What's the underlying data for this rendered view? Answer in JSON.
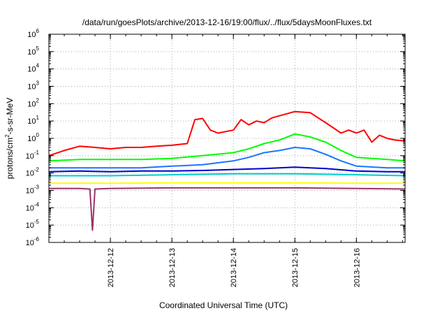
{
  "chart_data": {
    "type": "line",
    "title": "/data/run/goesPlots/archive/2013-12-16/19:00/flux/../flux/5daysMoonFluxes.txt",
    "xlabel": "Coordinated Universal Time (UTC)",
    "ylabel": {
      "prefix": "protons/cm",
      "superscript": "2",
      "suffix": "-s-sr-MeV"
    },
    "yscale": "log",
    "ylim_exponents": [
      -6,
      6
    ],
    "y_tick_base": "10",
    "y_tick_exponents": [
      "-6",
      "-5",
      "-4",
      "-3",
      "-2",
      "-1",
      "0",
      "1",
      "2",
      "3",
      "4",
      "5",
      "6"
    ],
    "xlim": [
      "2013-12-11 00:00",
      "2013-12-16 19:00"
    ],
    "x_ticks": [
      "2013-12-12",
      "2013-12-13",
      "2013-12-14",
      "2013-12-15",
      "2013-12-16"
    ],
    "grid": true,
    "series": [
      {
        "color": "#ff0000",
        "x": [
          "2013-12-11 00:00",
          "2013-12-11 06:00",
          "2013-12-11 12:00",
          "2013-12-11 18:00",
          "2013-12-12 00:00",
          "2013-12-12 06:00",
          "2013-12-12 12:00",
          "2013-12-12 18:00",
          "2013-12-13 00:00",
          "2013-12-13 06:00",
          "2013-12-13 09:00",
          "2013-12-13 12:00",
          "2013-12-13 15:00",
          "2013-12-13 18:00",
          "2013-12-14 00:00",
          "2013-12-14 03:00",
          "2013-12-14 06:00",
          "2013-12-14 09:00",
          "2013-12-14 12:00",
          "2013-12-14 15:00",
          "2013-12-14 18:00",
          "2013-12-15 00:00",
          "2013-12-15 06:00",
          "2013-12-15 12:00",
          "2013-12-15 15:00",
          "2013-12-15 18:00",
          "2013-12-15 21:00",
          "2013-12-16 00:00",
          "2013-12-16 03:00",
          "2013-12-16 06:00",
          "2013-12-16 09:00",
          "2013-12-16 12:00",
          "2013-12-16 15:00",
          "2013-12-16 19:00"
        ],
        "y": [
          0.1,
          0.2,
          0.35,
          0.3,
          0.25,
          0.3,
          0.3,
          0.35,
          0.4,
          0.5,
          12,
          14,
          3,
          2,
          3,
          12,
          6,
          10,
          8,
          15,
          20,
          35,
          30,
          8,
          4,
          2,
          3,
          2,
          3,
          0.6,
          1.5,
          1,
          0.8,
          0.7
        ]
      },
      {
        "color": "#00ff00",
        "x": [
          "2013-12-11 00:00",
          "2013-12-11 12:00",
          "2013-12-12 00:00",
          "2013-12-12 12:00",
          "2013-12-13 00:00",
          "2013-12-13 12:00",
          "2013-12-14 00:00",
          "2013-12-14 06:00",
          "2013-12-14 12:00",
          "2013-12-14 18:00",
          "2013-12-15 00:00",
          "2013-12-15 06:00",
          "2013-12-15 12:00",
          "2013-12-15 18:00",
          "2013-12-16 00:00",
          "2013-12-16 12:00",
          "2013-12-16 19:00"
        ],
        "y": [
          0.05,
          0.06,
          0.06,
          0.06,
          0.07,
          0.1,
          0.15,
          0.25,
          0.5,
          0.8,
          1.8,
          1.2,
          0.6,
          0.2,
          0.08,
          0.06,
          0.05
        ]
      },
      {
        "color": "#1a75ff",
        "x": [
          "2013-12-11 00:00",
          "2013-12-11 12:00",
          "2013-12-12 00:00",
          "2013-12-12 12:00",
          "2013-12-13 00:00",
          "2013-12-13 12:00",
          "2013-12-14 00:00",
          "2013-12-14 06:00",
          "2013-12-14 12:00",
          "2013-12-14 18:00",
          "2013-12-15 00:00",
          "2013-12-15 06:00",
          "2013-12-15 12:00",
          "2013-12-15 18:00",
          "2013-12-16 00:00",
          "2013-12-16 12:00",
          "2013-12-16 19:00"
        ],
        "y": [
          0.02,
          0.02,
          0.02,
          0.02,
          0.025,
          0.03,
          0.05,
          0.08,
          0.15,
          0.2,
          0.3,
          0.25,
          0.12,
          0.05,
          0.025,
          0.02,
          0.02
        ]
      },
      {
        "color": "#0000cc",
        "x": [
          "2013-12-11 00:00",
          "2013-12-11 12:00",
          "2013-12-12 00:00",
          "2013-12-12 12:00",
          "2013-12-13 00:00",
          "2013-12-13 12:00",
          "2013-12-14 00:00",
          "2013-12-14 12:00",
          "2013-12-15 00:00",
          "2013-12-15 12:00",
          "2013-12-16 00:00",
          "2013-12-16 12:00",
          "2013-12-16 19:00"
        ],
        "y": [
          0.012,
          0.013,
          0.012,
          0.013,
          0.013,
          0.014,
          0.016,
          0.018,
          0.022,
          0.018,
          0.013,
          0.012,
          0.012
        ]
      },
      {
        "color": "#00cccc",
        "x": [
          "2013-12-11 00:00",
          "2013-12-12 00:00",
          "2013-12-13 00:00",
          "2013-12-14 00:00",
          "2013-12-15 00:00",
          "2013-12-16 00:00",
          "2013-12-16 19:00"
        ],
        "y": [
          0.007,
          0.007,
          0.008,
          0.009,
          0.009,
          0.008,
          0.007
        ]
      },
      {
        "color": "#ffff00",
        "x": [
          "2013-12-11 00:00",
          "2013-12-12 00:00",
          "2013-12-13 00:00",
          "2013-12-14 00:00",
          "2013-12-15 00:00",
          "2013-12-16 00:00",
          "2013-12-16 19:00"
        ],
        "y": [
          0.0026,
          0.0026,
          0.0027,
          0.0027,
          0.0027,
          0.0026,
          0.0026
        ]
      },
      {
        "color": "#993366",
        "x": [
          "2013-12-11 00:00",
          "2013-12-11 12:00",
          "2013-12-11 16:00",
          "2013-12-11 17:00",
          "2013-12-11 18:00",
          "2013-12-12 00:00",
          "2013-12-13 00:00",
          "2013-12-14 00:00",
          "2013-12-15 00:00",
          "2013-12-16 00:00",
          "2013-12-16 19:00"
        ],
        "y": [
          0.0013,
          0.0013,
          0.0012,
          5e-06,
          0.0012,
          0.0013,
          0.0014,
          0.0014,
          0.0014,
          0.0013,
          0.0012
        ]
      }
    ]
  }
}
